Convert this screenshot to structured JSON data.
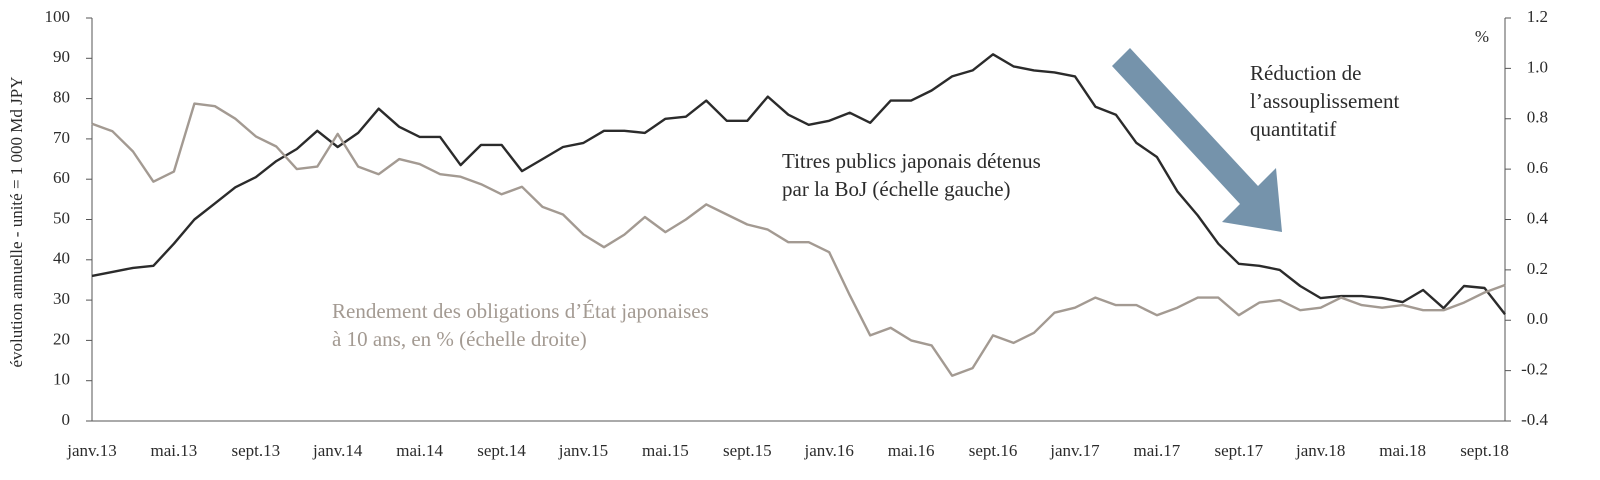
{
  "chart_data": {
    "type": "line",
    "y_label": "évolution annuelle - unité = 1 000 Md JPY",
    "y2_label": "%",
    "categories": [
      "janv.13",
      null,
      null,
      null,
      "mai.13",
      null,
      null,
      null,
      "sept.13",
      null,
      null,
      null,
      "janv.14",
      null,
      null,
      null,
      "mai.14",
      null,
      null,
      null,
      "sept.14",
      null,
      null,
      null,
      "janv.15",
      null,
      null,
      null,
      "mai.15",
      null,
      null,
      null,
      "sept.15",
      null,
      null,
      null,
      "janv.16",
      null,
      null,
      null,
      "mai.16",
      null,
      null,
      null,
      "sept.16",
      null,
      null,
      null,
      "janv.17",
      null,
      null,
      null,
      "mai.17",
      null,
      null,
      null,
      "sept.17",
      null,
      null,
      null,
      "janv.18",
      null,
      null,
      null,
      "mai.18",
      null,
      null,
      null,
      "sept.18",
      null
    ],
    "series": [
      {
        "color": "#2b2b2b",
        "axis": "y",
        "values": [
          36,
          37,
          38,
          38.5,
          44,
          50,
          54,
          58,
          60.5,
          64.5,
          67.5,
          72,
          68,
          71.5,
          77.5,
          73,
          70.5,
          70.5,
          63.5,
          68.5,
          68.5,
          62,
          65,
          68,
          69,
          72,
          72,
          71.5,
          75,
          75.5,
          79.5,
          74.5,
          74.5,
          80.5,
          76,
          73.5,
          74.5,
          76.5,
          74,
          79.5,
          79.5,
          82,
          85.5,
          87,
          91,
          88,
          87,
          86.5,
          85.5,
          78,
          76,
          69,
          65.5,
          57,
          51,
          44,
          39,
          38.5,
          37.5,
          33.5,
          30.5,
          31,
          31,
          30.5,
          29.5,
          32.5,
          28,
          33.5,
          33,
          26.5
        ]
      },
      {
        "color": "#a39a92",
        "axis": "y2",
        "values": [
          0.78,
          0.75,
          0.67,
          0.55,
          0.59,
          0.86,
          0.85,
          0.8,
          0.73,
          0.69,
          0.6,
          0.61,
          0.74,
          0.61,
          0.58,
          0.64,
          0.62,
          0.58,
          0.57,
          0.54,
          0.5,
          0.53,
          0.45,
          0.42,
          0.34,
          0.29,
          0.34,
          0.41,
          0.35,
          0.4,
          0.46,
          0.42,
          0.38,
          0.36,
          0.31,
          0.31,
          0.27,
          0.1,
          -0.06,
          -0.03,
          -0.08,
          -0.1,
          -0.22,
          -0.19,
          -0.06,
          -0.09,
          -0.05,
          0.03,
          0.05,
          0.09,
          0.06,
          0.06,
          0.02,
          0.05,
          0.09,
          0.09,
          0.02,
          0.07,
          0.08,
          0.04,
          0.05,
          0.09,
          0.06,
          0.05,
          0.06,
          0.04,
          0.04,
          0.07,
          0.11,
          0.14
        ]
      }
    ],
    "ylim": [
      0,
      100
    ],
    "yticks": [
      0,
      10,
      20,
      30,
      40,
      50,
      60,
      70,
      80,
      90,
      100
    ],
    "y2lim": [
      -0.4,
      1.2
    ],
    "y2ticks": [
      -0.4,
      -0.2,
      {
        "value": 0,
        "label": "0.0"
      },
      0.2,
      0.4,
      0.6,
      0.8,
      {
        "value": 1,
        "label": "1.0"
      },
      1.2
    ],
    "annotations": [
      {
        "lines": [
          "Réduction de",
          "l’assouplissement",
          "quantitatif"
        ],
        "color": "#2b2b2b"
      },
      {
        "lines": [
          "Titres publics japonais détenus",
          "par la BoJ (échelle gauche)"
        ],
        "color": "#2b2b2b"
      },
      {
        "lines": [
          "Rendement des obligations d’État japonaises",
          "à 10 ans, en % (échelle droite)"
        ],
        "color": "#a39a92"
      }
    ]
  }
}
